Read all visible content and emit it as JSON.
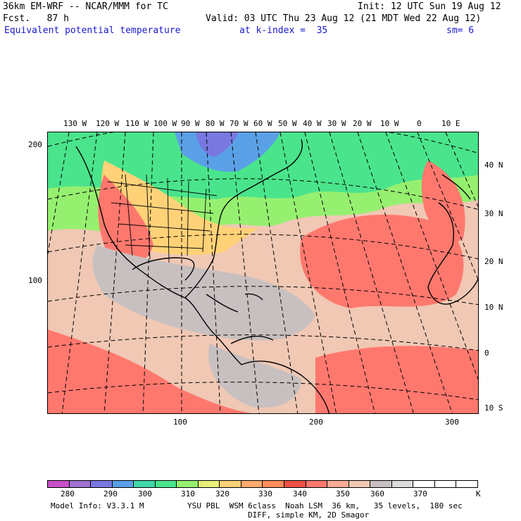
{
  "header": {
    "model_title": "36km EM-WRF -- NCAR/MMM for TC",
    "init": "Init: 12 UTC Sun 19 Aug 12",
    "fcst": "Fcst.   87 h",
    "valid": "Valid: 03 UTC Thu 23 Aug 12 (21 MDT Wed 22 Aug 12)",
    "field": "Equivalent potential temperature",
    "level": "at k-index =  35",
    "smooth": "sm= 6"
  },
  "top_lon_labels": [
    "130 W",
    "120 W",
    "110 W",
    "100 W",
    "90 W",
    "80 W",
    "70 W",
    "60 W",
    "50 W",
    "40 W",
    "30 W",
    "20 W",
    "10 W",
    "0",
    "10 E"
  ],
  "right_lat_labels": [
    "40 N",
    "30 N",
    "20 N",
    "10 N",
    "0",
    "10 S"
  ],
  "left_grid_labels": [
    "200",
    "100"
  ],
  "bottom_grid_labels": [
    "100",
    "200",
    "300"
  ],
  "colorbar": {
    "labels": [
      "280",
      "290",
      "300",
      "310",
      "320",
      "330",
      "340",
      "350",
      "360",
      "370"
    ],
    "unit": "K",
    "colors": [
      "#c850c8",
      "#a070d0",
      "#7878e0",
      "#5aa0e6",
      "#40d8a8",
      "#4ae48c",
      "#96f070",
      "#e6f078",
      "#ffd278",
      "#ffaa6e",
      "#ff8c5a",
      "#f05046",
      "#ff786e",
      "#ffaa96",
      "#f0c8b4",
      "#c8c0c0",
      "#dcdcdc",
      "#ffffff",
      "#ffffff",
      "#ffffff"
    ]
  },
  "footer": {
    "line1_left": "Model Info: V3.3.1 M",
    "line1_right": "YSU PBL  WSM 6class  Noah LSM  36 km,   35 levels,  180 sec",
    "line2": "DIFF, simple KM, 2D Smagor"
  }
}
